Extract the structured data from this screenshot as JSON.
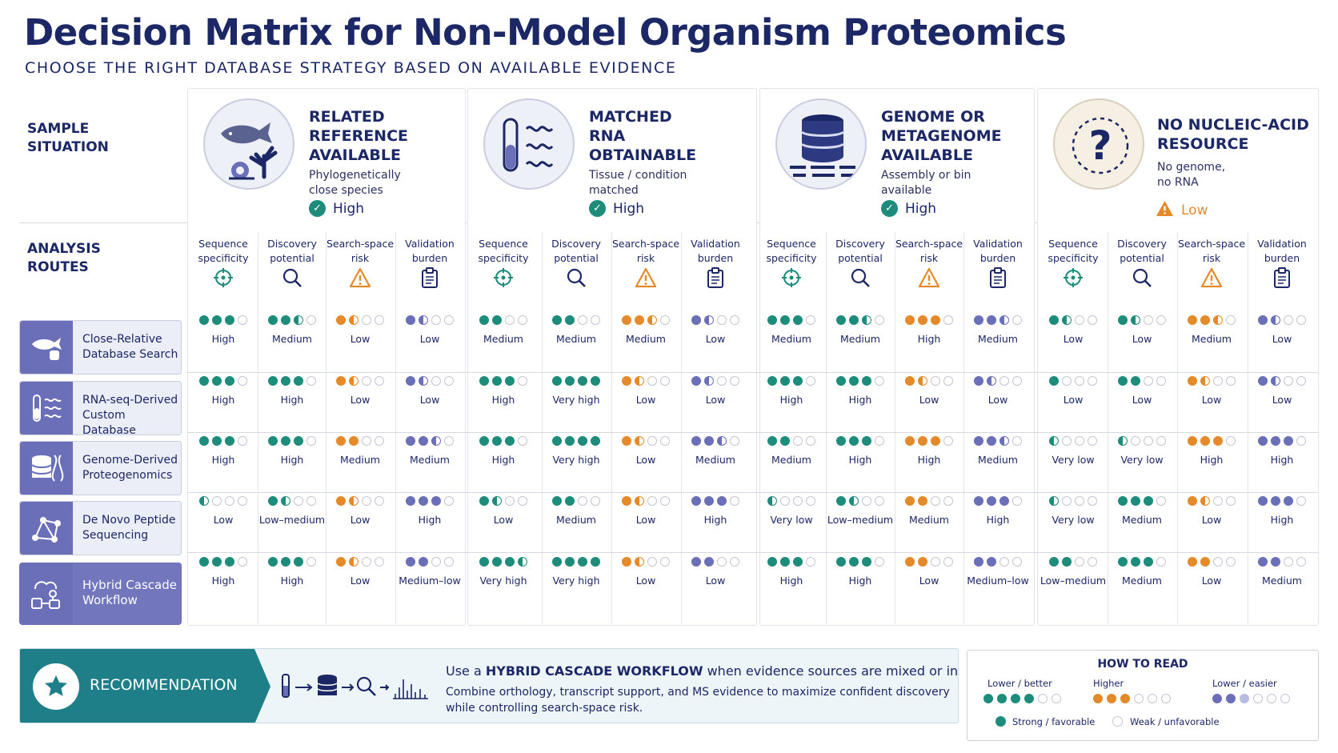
{
  "title": "Decision Matrix for Non-Model Organism Proteomics",
  "subtitle": "CHOOSE THE RIGHT DATABASE STRATEGY BASED ON AVAILABLE EVIDENCE",
  "row_labels": {
    "sample": "SAMPLE\nSITUATION",
    "routes": "ANALYSIS\nROUTES"
  },
  "colors": {
    "teal": "#1d8c7b",
    "orange": "#e58a2a",
    "purple": "#6b6fb8",
    "navy": "#1c2766"
  },
  "situations": [
    {
      "title": "RELATED\nREFERENCE\nAVAILABLE",
      "desc": "Phylogenetically\nclose species",
      "level": "High",
      "level_icon": "check-icon",
      "icon": "fish-coral-icon"
    },
    {
      "title": "MATCHED\nRNA\nOBTAINABLE",
      "desc": "Tissue / condition\nmatched",
      "level": "High",
      "level_icon": "check-icon",
      "icon": "rna-tube-icon"
    },
    {
      "title": "GENOME OR\nMETAGENOME\nAVAILABLE",
      "desc": "Assembly or bin\navailable",
      "level": "High",
      "level_icon": "check-icon",
      "icon": "database-icon"
    },
    {
      "title": "NO NUCLEIC-ACID\nRESOURCE",
      "desc": "No genome,\nno RNA",
      "level": "Low",
      "level_icon": "warning-icon",
      "icon": "question-icon"
    }
  ],
  "criteria": [
    {
      "label": "Sequence\nspecificity",
      "icon": "crosshair-icon",
      "color": "teal"
    },
    {
      "label": "Discovery\npotential",
      "icon": "magnifier-icon",
      "color": "teal"
    },
    {
      "label": "Search-space\nrisk",
      "icon": "warning-icon",
      "color": "orange"
    },
    {
      "label": "Validation\nburden",
      "icon": "clipboard-icon",
      "color": "purple"
    }
  ],
  "routes": [
    {
      "label": "Close-Relative\nDatabase Search",
      "icon": "fish-database-icon"
    },
    {
      "label": "RNA-seq-Derived\nCustom Database",
      "icon": "rna-tube-icon"
    },
    {
      "label": "Genome-Derived\nProteogenomics",
      "icon": "database-dna-icon"
    },
    {
      "label": "De Novo Peptide\nSequencing",
      "icon": "peptide-graph-icon"
    },
    {
      "label": "Hybrid Cascade\nWorkflow",
      "icon": "cascade-workflow-icon",
      "highlight": true
    }
  ],
  "matrix": [
    [
      [
        3,
        "High"
      ],
      [
        2.5,
        "Medium"
      ],
      [
        1.5,
        "Low"
      ],
      [
        1.5,
        "Low"
      ],
      [
        2,
        "Medium"
      ],
      [
        2,
        "Medium"
      ],
      [
        2.5,
        "Medium"
      ],
      [
        1.5,
        "Low"
      ],
      [
        3,
        "Medium"
      ],
      [
        2.5,
        "Medium"
      ],
      [
        3,
        "High"
      ],
      [
        2.5,
        "Medium"
      ],
      [
        1.5,
        "Low"
      ],
      [
        1.5,
        "Low"
      ],
      [
        2.5,
        "Medium"
      ],
      [
        1.5,
        "Low"
      ]
    ],
    [
      [
        3,
        "High"
      ],
      [
        3,
        "High"
      ],
      [
        1.5,
        "Low"
      ],
      [
        1.5,
        "Low"
      ],
      [
        3,
        "High"
      ],
      [
        4,
        "Very high"
      ],
      [
        1.5,
        "Low"
      ],
      [
        1.5,
        "Low"
      ],
      [
        3,
        "High"
      ],
      [
        3,
        "High"
      ],
      [
        1.5,
        "Low"
      ],
      [
        1.5,
        "Low"
      ],
      [
        1,
        "Low"
      ],
      [
        2,
        "Low"
      ],
      [
        1.5,
        "Low"
      ],
      [
        1.5,
        "Low"
      ]
    ],
    [
      [
        3,
        "High"
      ],
      [
        3,
        "High"
      ],
      [
        2,
        "Medium"
      ],
      [
        2.5,
        "Medium"
      ],
      [
        3,
        "High"
      ],
      [
        4,
        "Very high"
      ],
      [
        1.5,
        "Low"
      ],
      [
        2.5,
        "Medium"
      ],
      [
        2,
        "Medium"
      ],
      [
        3,
        "High"
      ],
      [
        3,
        "High"
      ],
      [
        2.5,
        "Medium"
      ],
      [
        0.5,
        "Very low"
      ],
      [
        0.5,
        "Very low"
      ],
      [
        3,
        "High"
      ],
      [
        3,
        "High"
      ]
    ],
    [
      [
        0.5,
        "Low"
      ],
      [
        1.5,
        "Low–medium"
      ],
      [
        1.5,
        "Low"
      ],
      [
        3,
        "High"
      ],
      [
        1.5,
        "Low"
      ],
      [
        2,
        "Medium"
      ],
      [
        1.5,
        "Low"
      ],
      [
        3,
        "High"
      ],
      [
        0.5,
        "Very low"
      ],
      [
        1.5,
        "Low–medium"
      ],
      [
        2,
        "Medium"
      ],
      [
        3,
        "High"
      ],
      [
        0.5,
        "Very low"
      ],
      [
        3,
        "Medium"
      ],
      [
        1.5,
        "Low"
      ],
      [
        3,
        "High"
      ]
    ],
    [
      [
        3,
        "High"
      ],
      [
        3,
        "High"
      ],
      [
        1.5,
        "Low"
      ],
      [
        2,
        "Medium–low"
      ],
      [
        3.5,
        "Very high"
      ],
      [
        4,
        "Very high"
      ],
      [
        1.5,
        "Low"
      ],
      [
        2,
        "Low"
      ],
      [
        3,
        "High"
      ],
      [
        3,
        "High"
      ],
      [
        2,
        "Low"
      ],
      [
        2,
        "Medium–low"
      ],
      [
        2,
        "Low–medium"
      ],
      [
        3,
        "Medium"
      ],
      [
        2,
        "Low"
      ],
      [
        2,
        "Medium"
      ]
    ]
  ],
  "recommendation": {
    "label": "RECOMMENDATION",
    "headline_pre": "Use a ",
    "headline_strong": "HYBRID CASCADE WORKFLOW",
    "headline_post": " when evidence sources are mixed or incomplete.",
    "body": "Combine orthology, transcript support, and MS evidence to maximize confident discovery\nwhile controlling search-space risk."
  },
  "how_to_read": {
    "title": "HOW TO READ",
    "scale_teal": "Lower / better",
    "scale_orange": "Higher",
    "scale_purple": "Lower / easier",
    "legend_strong": "Strong / favorable",
    "legend_weak": "Weak / unfavorable"
  }
}
